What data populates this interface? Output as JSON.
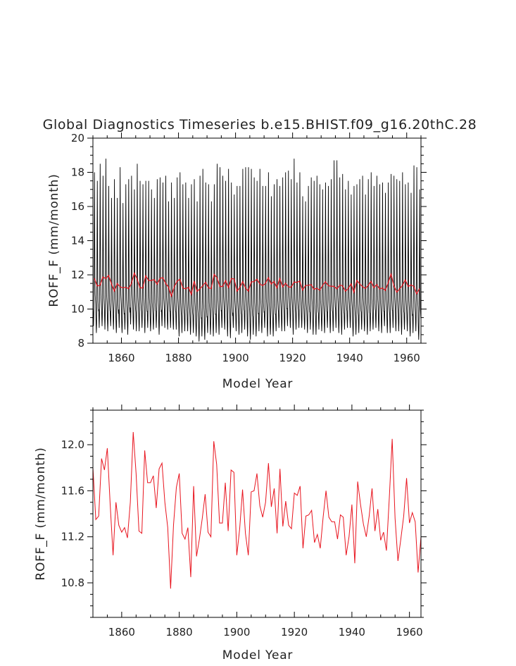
{
  "chart_data": [
    {
      "type": "line",
      "title": "Global Diagnostics Timeseries b.e15.BHIST.f09_g16.20thC.28",
      "xlabel": "Model Year",
      "ylabel": "ROFF_F (mm/month)",
      "xlim": [
        1850,
        1965
      ],
      "ylim": [
        8,
        20
      ],
      "x_ticks": [
        1860,
        1880,
        1900,
        1920,
        1940,
        1960
      ],
      "x_tick_labels": [
        "1860",
        "1880",
        "1900",
        "1920",
        "1940",
        "1960"
      ],
      "y_ticks": [
        8,
        10,
        12,
        14,
        16,
        18,
        20
      ],
      "y_tick_labels": [
        "8",
        "10",
        "12",
        "14",
        "16",
        "18",
        "20"
      ],
      "grid": false,
      "series": [
        {
          "color": "#000000",
          "monthly_annual_peak": [
            18.0,
            17.5,
            18.5,
            17.8,
            18.8,
            17.2,
            16.5,
            17.6,
            16.5,
            18.3,
            16.2,
            17.3,
            17.6,
            17.8,
            17.0,
            18.5,
            17.5,
            17.3,
            17.5,
            17.5,
            17.0,
            16.5,
            17.6,
            17.7,
            17.4,
            17.8,
            16.3,
            17.4,
            16.5,
            17.7,
            18.0,
            17.3,
            17.4,
            16.5,
            17.3,
            17.6,
            16.3,
            17.8,
            18.2,
            17.4,
            17.3,
            16.3,
            17.3,
            18.5,
            18.3,
            17.8,
            17.5,
            18.2,
            17.4,
            16.7,
            17.2,
            17.2,
            18.2,
            18.3,
            18.3,
            18.2,
            17.7,
            17.5,
            18.2,
            17.2,
            17.2,
            18.0,
            16.6,
            17.3,
            17.6,
            17.2,
            17.7,
            18.0,
            18.1,
            17.6,
            18.8,
            17.4,
            18.0,
            16.6,
            16.3,
            17.2,
            17.7,
            17.5,
            17.8,
            17.3,
            17.0,
            17.4,
            17.2,
            17.6,
            18.7,
            18.7,
            17.7,
            17.9,
            17.0,
            17.5,
            16.7,
            17.2,
            17.3,
            17.6,
            17.8,
            16.7,
            17.6,
            18.0,
            17.2,
            17.8,
            17.3,
            17.4,
            16.8,
            17.4,
            17.9,
            17.8,
            17.6,
            17.5,
            18.0,
            17.3,
            17.4,
            16.8,
            18.4,
            18.3,
            17.0
          ],
          "monthly_annual_trough": [
            9.0,
            8.6,
            8.9,
            9.0,
            8.8,
            8.7,
            9.0,
            8.8,
            8.6,
            8.9,
            8.6,
            8.8,
            8.5,
            9.1,
            8.8,
            8.7,
            8.7,
            8.9,
            8.6,
            8.9,
            8.7,
            8.8,
            8.9,
            8.5,
            9.0,
            8.9,
            8.8,
            8.9,
            8.8,
            8.8,
            8.4,
            8.6,
            8.7,
            8.7,
            8.5,
            8.6,
            8.4,
            8.1,
            8.4,
            8.2,
            8.6,
            8.5,
            8.4,
            8.6,
            8.5,
            8.9,
            8.8,
            8.4,
            8.3,
            8.9,
            8.7,
            8.5,
            8.6,
            8.8,
            8.4,
            8.2,
            8.5,
            8.4,
            8.7,
            8.6,
            8.9,
            8.4,
            8.5,
            8.4,
            8.7,
            8.9,
            8.7,
            8.7,
            9.0,
            8.9,
            8.5,
            8.8,
            8.9,
            8.9,
            8.8,
            8.6,
            8.8,
            8.5,
            8.5,
            8.8,
            8.7,
            8.6,
            8.9,
            8.6,
            8.7,
            8.9,
            8.6,
            8.5,
            8.8,
            8.9,
            8.9,
            8.4,
            8.5,
            8.6,
            8.8,
            8.7,
            8.5,
            8.7,
            8.8,
            8.9,
            8.7,
            8.6,
            9.0,
            8.6,
            8.6,
            8.9,
            8.7,
            8.7,
            8.5,
            8.8,
            8.7,
            8.4,
            8.6,
            8.7,
            8.2
          ]
        },
        {
          "color": "#e8141e",
          "x_start": 1850,
          "values": [
            11.8,
            11.35,
            11.38,
            11.88,
            11.78,
            11.97,
            11.48,
            11.04,
            11.5,
            11.3,
            11.24,
            11.28,
            11.19,
            11.5,
            12.11,
            11.75,
            11.25,
            11.23,
            11.95,
            11.67,
            11.67,
            11.73,
            11.45,
            11.79,
            11.84,
            11.5,
            11.28,
            10.75,
            11.3,
            11.63,
            11.75,
            11.23,
            11.18,
            11.28,
            10.85,
            11.64,
            11.03,
            11.18,
            11.36,
            11.57,
            11.24,
            11.2,
            12.03,
            11.83,
            11.32,
            11.32,
            11.67,
            11.25,
            11.78,
            11.76,
            11.04,
            11.27,
            11.61,
            11.23,
            11.04,
            11.59,
            11.6,
            11.75,
            11.47,
            11.37,
            11.5,
            11.84,
            11.46,
            11.62,
            11.23,
            11.79,
            11.29,
            11.51,
            11.3,
            11.27,
            11.58,
            11.56,
            11.64,
            11.1,
            11.38,
            11.39,
            11.43,
            11.15,
            11.22,
            11.1,
            11.37,
            11.6,
            11.37,
            11.33,
            11.33,
            11.18,
            11.39,
            11.37,
            11.04,
            11.2,
            11.48,
            10.97,
            11.68,
            11.48,
            11.31,
            11.2,
            11.38,
            11.62,
            11.25,
            11.44,
            11.17,
            11.24,
            11.08,
            11.54,
            12.05,
            11.36,
            10.99,
            11.18,
            11.38,
            11.71,
            11.32,
            11.41,
            11.33,
            10.89,
            11.2
          ]
        }
      ]
    },
    {
      "type": "line",
      "xlabel": "Model Year",
      "ylabel": "ROFF_F (mm/month)",
      "xlim": [
        1850,
        1964
      ],
      "ylim": [
        10.5,
        12.3
      ],
      "x_ticks": [
        1860,
        1880,
        1900,
        1920,
        1940,
        1960
      ],
      "x_tick_labels": [
        "1860",
        "1880",
        "1900",
        "1920",
        "1940",
        "1960"
      ],
      "y_ticks": [
        10.8,
        11.2,
        11.6,
        12.0
      ],
      "y_tick_labels": [
        "10.8",
        "11.2",
        "11.6",
        "12.0"
      ],
      "grid": false,
      "series": [
        {
          "color": "#e8141e",
          "x_start": 1850,
          "values": [
            11.8,
            11.35,
            11.38,
            11.88,
            11.78,
            11.97,
            11.48,
            11.04,
            11.5,
            11.3,
            11.24,
            11.28,
            11.19,
            11.5,
            12.11,
            11.75,
            11.25,
            11.23,
            11.95,
            11.67,
            11.67,
            11.73,
            11.45,
            11.79,
            11.84,
            11.5,
            11.28,
            10.75,
            11.3,
            11.63,
            11.75,
            11.23,
            11.18,
            11.28,
            10.85,
            11.64,
            11.03,
            11.18,
            11.36,
            11.57,
            11.24,
            11.2,
            12.03,
            11.83,
            11.32,
            11.32,
            11.67,
            11.25,
            11.78,
            11.76,
            11.04,
            11.27,
            11.61,
            11.23,
            11.04,
            11.59,
            11.6,
            11.75,
            11.47,
            11.37,
            11.5,
            11.84,
            11.46,
            11.62,
            11.23,
            11.79,
            11.29,
            11.51,
            11.3,
            11.27,
            11.58,
            11.56,
            11.64,
            11.1,
            11.38,
            11.39,
            11.43,
            11.15,
            11.22,
            11.1,
            11.37,
            11.6,
            11.37,
            11.33,
            11.33,
            11.18,
            11.39,
            11.37,
            11.04,
            11.2,
            11.48,
            10.97,
            11.68,
            11.48,
            11.31,
            11.2,
            11.38,
            11.62,
            11.25,
            11.44,
            11.17,
            11.24,
            11.08,
            11.54,
            12.05,
            11.36,
            10.99,
            11.18,
            11.38,
            11.71,
            11.32,
            11.41,
            11.33,
            10.89,
            11.2
          ]
        }
      ]
    }
  ]
}
